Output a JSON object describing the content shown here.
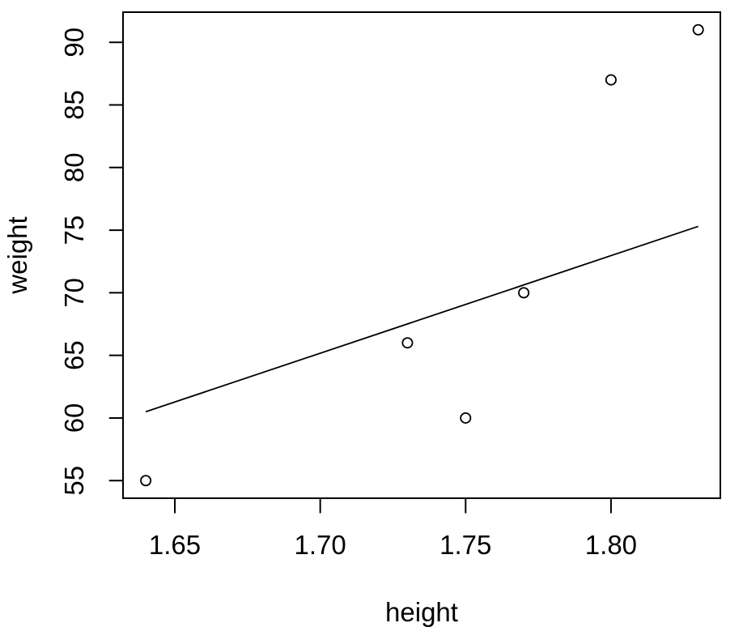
{
  "chart_data": {
    "type": "scatter",
    "title": "",
    "xlabel": "height",
    "ylabel": "weight",
    "points": [
      {
        "x": 1.64,
        "y": 55
      },
      {
        "x": 1.73,
        "y": 66
      },
      {
        "x": 1.75,
        "y": 60
      },
      {
        "x": 1.77,
        "y": 70
      },
      {
        "x": 1.8,
        "y": 87
      },
      {
        "x": 1.83,
        "y": 91
      }
    ],
    "fit_line": {
      "x1": 1.64,
      "y1": 60.5,
      "x2": 1.83,
      "y2": 75.3
    },
    "x_ticks": [
      {
        "value": 1.65,
        "label": "1.65"
      },
      {
        "value": 1.7,
        "label": "1.70"
      },
      {
        "value": 1.75,
        "label": "1.75"
      },
      {
        "value": 1.8,
        "label": "1.80"
      }
    ],
    "y_ticks": [
      {
        "value": 55,
        "label": "55"
      },
      {
        "value": 60,
        "label": "60"
      },
      {
        "value": 65,
        "label": "65"
      },
      {
        "value": 70,
        "label": "70"
      },
      {
        "value": 75,
        "label": "75"
      },
      {
        "value": 80,
        "label": "80"
      },
      {
        "value": 85,
        "label": "85"
      },
      {
        "value": 90,
        "label": "90"
      }
    ],
    "xlim": [
      1.6324,
      1.8376
    ],
    "ylim": [
      53.56,
      92.44
    ],
    "marker": "open-circle",
    "grid": false,
    "legend": "none",
    "colors": {
      "foreground": "#000000",
      "background": "#ffffff"
    }
  }
}
